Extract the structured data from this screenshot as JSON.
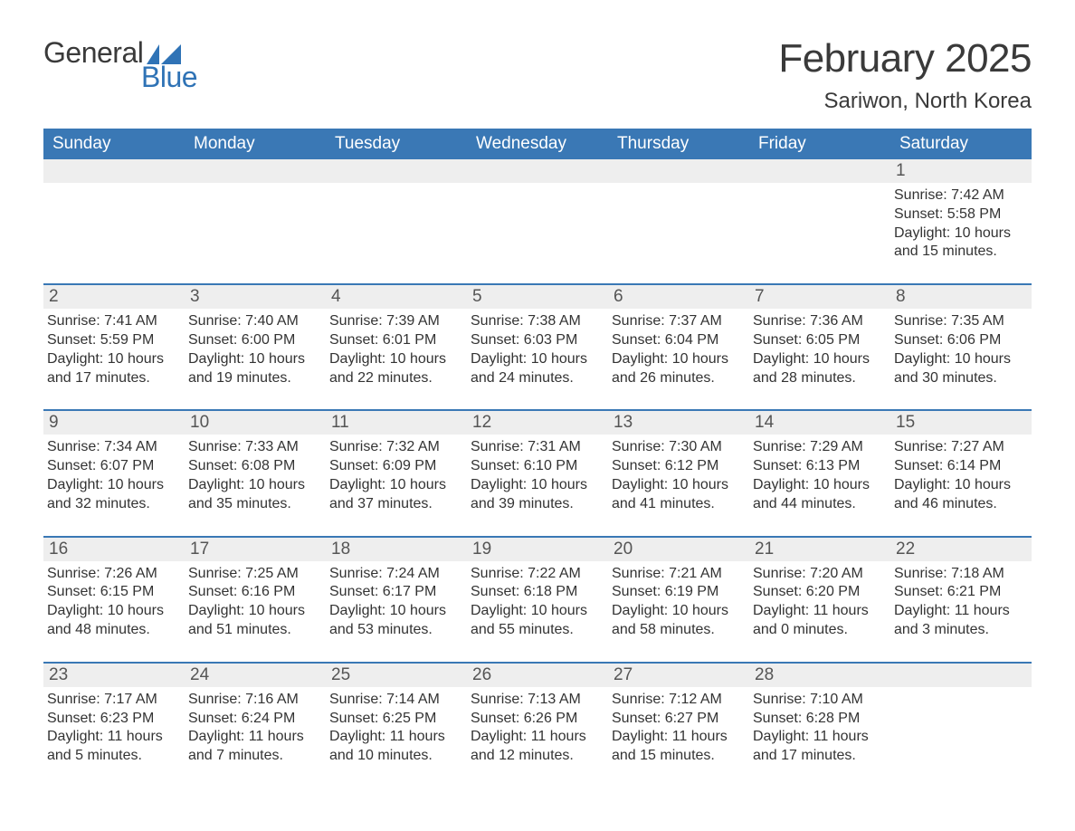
{
  "brand": {
    "word1": "General",
    "word2": "Blue",
    "flag_color": "#2f73b6"
  },
  "title": "February 2025",
  "location": "Sariwon, North Korea",
  "colors": {
    "header_bg": "#3a78b5",
    "header_text": "#ffffff",
    "row_divider": "#3a78b5",
    "daynum_bg": "#eeeeee",
    "text": "#333333",
    "background": "#ffffff"
  },
  "dow": [
    "Sunday",
    "Monday",
    "Tuesday",
    "Wednesday",
    "Thursday",
    "Friday",
    "Saturday"
  ],
  "weeks": [
    [
      null,
      null,
      null,
      null,
      null,
      null,
      {
        "n": "1",
        "sr": "7:42 AM",
        "ss": "5:58 PM",
        "dh": "10",
        "dm": "15"
      }
    ],
    [
      {
        "n": "2",
        "sr": "7:41 AM",
        "ss": "5:59 PM",
        "dh": "10",
        "dm": "17"
      },
      {
        "n": "3",
        "sr": "7:40 AM",
        "ss": "6:00 PM",
        "dh": "10",
        "dm": "19"
      },
      {
        "n": "4",
        "sr": "7:39 AM",
        "ss": "6:01 PM",
        "dh": "10",
        "dm": "22"
      },
      {
        "n": "5",
        "sr": "7:38 AM",
        "ss": "6:03 PM",
        "dh": "10",
        "dm": "24"
      },
      {
        "n": "6",
        "sr": "7:37 AM",
        "ss": "6:04 PM",
        "dh": "10",
        "dm": "26"
      },
      {
        "n": "7",
        "sr": "7:36 AM",
        "ss": "6:05 PM",
        "dh": "10",
        "dm": "28"
      },
      {
        "n": "8",
        "sr": "7:35 AM",
        "ss": "6:06 PM",
        "dh": "10",
        "dm": "30"
      }
    ],
    [
      {
        "n": "9",
        "sr": "7:34 AM",
        "ss": "6:07 PM",
        "dh": "10",
        "dm": "32"
      },
      {
        "n": "10",
        "sr": "7:33 AM",
        "ss": "6:08 PM",
        "dh": "10",
        "dm": "35"
      },
      {
        "n": "11",
        "sr": "7:32 AM",
        "ss": "6:09 PM",
        "dh": "10",
        "dm": "37"
      },
      {
        "n": "12",
        "sr": "7:31 AM",
        "ss": "6:10 PM",
        "dh": "10",
        "dm": "39"
      },
      {
        "n": "13",
        "sr": "7:30 AM",
        "ss": "6:12 PM",
        "dh": "10",
        "dm": "41"
      },
      {
        "n": "14",
        "sr": "7:29 AM",
        "ss": "6:13 PM",
        "dh": "10",
        "dm": "44"
      },
      {
        "n": "15",
        "sr": "7:27 AM",
        "ss": "6:14 PM",
        "dh": "10",
        "dm": "46"
      }
    ],
    [
      {
        "n": "16",
        "sr": "7:26 AM",
        "ss": "6:15 PM",
        "dh": "10",
        "dm": "48"
      },
      {
        "n": "17",
        "sr": "7:25 AM",
        "ss": "6:16 PM",
        "dh": "10",
        "dm": "51"
      },
      {
        "n": "18",
        "sr": "7:24 AM",
        "ss": "6:17 PM",
        "dh": "10",
        "dm": "53"
      },
      {
        "n": "19",
        "sr": "7:22 AM",
        "ss": "6:18 PM",
        "dh": "10",
        "dm": "55"
      },
      {
        "n": "20",
        "sr": "7:21 AM",
        "ss": "6:19 PM",
        "dh": "10",
        "dm": "58"
      },
      {
        "n": "21",
        "sr": "7:20 AM",
        "ss": "6:20 PM",
        "dh": "11",
        "dm": "0"
      },
      {
        "n": "22",
        "sr": "7:18 AM",
        "ss": "6:21 PM",
        "dh": "11",
        "dm": "3"
      }
    ],
    [
      {
        "n": "23",
        "sr": "7:17 AM",
        "ss": "6:23 PM",
        "dh": "11",
        "dm": "5"
      },
      {
        "n": "24",
        "sr": "7:16 AM",
        "ss": "6:24 PM",
        "dh": "11",
        "dm": "7"
      },
      {
        "n": "25",
        "sr": "7:14 AM",
        "ss": "6:25 PM",
        "dh": "11",
        "dm": "10"
      },
      {
        "n": "26",
        "sr": "7:13 AM",
        "ss": "6:26 PM",
        "dh": "11",
        "dm": "12"
      },
      {
        "n": "27",
        "sr": "7:12 AM",
        "ss": "6:27 PM",
        "dh": "11",
        "dm": "15"
      },
      {
        "n": "28",
        "sr": "7:10 AM",
        "ss": "6:28 PM",
        "dh": "11",
        "dm": "17"
      },
      null
    ]
  ],
  "labels": {
    "sunrise": "Sunrise: ",
    "sunset": "Sunset: ",
    "daylight_pre": "Daylight: ",
    "hours_word": " hours",
    "and_word": "and ",
    "minutes_word": " minutes."
  }
}
